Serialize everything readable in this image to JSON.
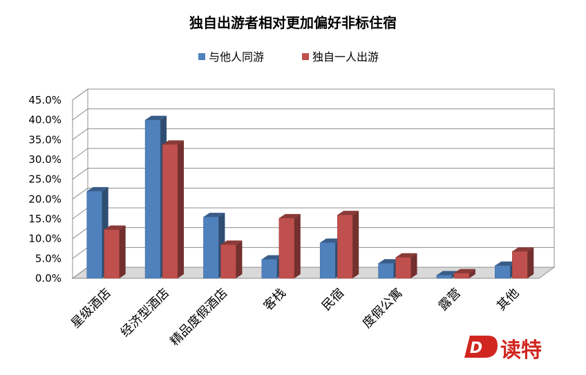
{
  "chart_data": {
    "type": "bar",
    "title": "独自出游者相对更加偏好非标住宿",
    "categories": [
      "星级酒店",
      "经济型酒店",
      "精品度假酒店",
      "客栈",
      "民宿",
      "度假公寓",
      "露营",
      "其他"
    ],
    "series": [
      {
        "name": "与他人同游",
        "values": [
          22.0,
          40.0,
          15.5,
          4.8,
          9.0,
          3.8,
          0.8,
          3.2
        ],
        "color": "#4f81bd"
      },
      {
        "name": "独自一人出游",
        "values": [
          12.3,
          33.8,
          8.5,
          15.2,
          16.0,
          5.3,
          1.3,
          6.8
        ],
        "color": "#c0504d"
      }
    ],
    "y_ticks": [
      "0.0%",
      "5.0%",
      "10.0%",
      "15.0%",
      "20.0%",
      "25.0%",
      "30.0%",
      "35.0%",
      "40.0%",
      "45.0%"
    ],
    "ylim": [
      0,
      45
    ],
    "grid": true,
    "legend_position": "top-center"
  },
  "watermark": {
    "text": "读特",
    "letter": "D"
  }
}
